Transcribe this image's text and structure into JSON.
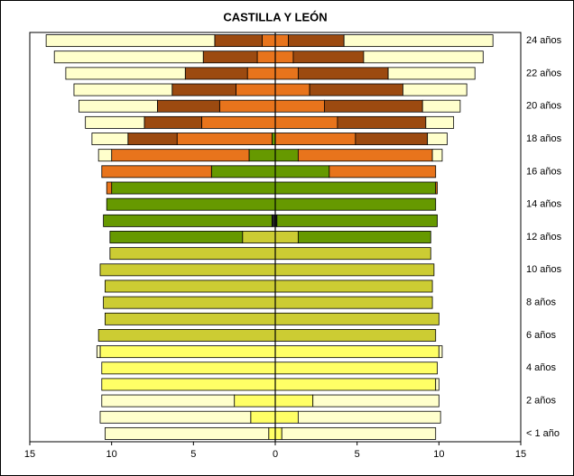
{
  "chart_data": {
    "type": "pyramid",
    "title": "CASTILLA Y LEÓN",
    "categories": [
      "< 1 año",
      null,
      "2 años",
      null,
      "4 años",
      null,
      "6 años",
      null,
      "8 años",
      null,
      "10 años",
      null,
      "12 años",
      null,
      "14 años",
      null,
      "16 años",
      null,
      "18 años",
      null,
      "20 años",
      null,
      "22 años",
      null,
      "24 años"
    ],
    "xlim": [
      -15,
      15
    ],
    "xticks": [
      {
        "value": -15,
        "label": "15"
      },
      {
        "value": -10,
        "label": "10"
      },
      {
        "value": -5,
        "label": "5"
      },
      0,
      5,
      10,
      15
    ],
    "series": [
      {
        "color": "#222222",
        "left_values": [
          0,
          0,
          0,
          0,
          0,
          0,
          0,
          0,
          0,
          0,
          0,
          0,
          0,
          0.2,
          0,
          0,
          0,
          0,
          0,
          0,
          0,
          0,
          0,
          0,
          0
        ],
        "right_values": [
          0,
          0,
          0,
          0,
          0,
          0,
          0,
          0,
          0,
          0,
          0,
          0,
          0,
          0.1,
          0,
          0,
          0,
          0,
          0,
          0,
          0,
          0,
          0,
          0,
          0
        ]
      },
      {
        "color": "#ffff66",
        "left_values": [
          0.4,
          1.5,
          2.5,
          10.6,
          10.6,
          10.7,
          0,
          0,
          0,
          0,
          0,
          0,
          0,
          0,
          0,
          0,
          0,
          0,
          0,
          0,
          0,
          0,
          0,
          0,
          0
        ],
        "right_values": [
          0.4,
          1.4,
          2.3,
          9.8,
          9.9,
          10.0,
          0,
          0,
          0,
          0,
          0,
          0,
          0,
          0,
          0,
          0,
          0,
          0,
          0,
          0,
          0,
          0,
          0,
          0,
          0
        ]
      },
      {
        "color": "#cccc33",
        "left_values": [
          0,
          0,
          0,
          0,
          0,
          0,
          10.8,
          10.4,
          10.5,
          10.4,
          10.7,
          10.1,
          2.0,
          0,
          0,
          0,
          0,
          0,
          0,
          0,
          0,
          0,
          0,
          0,
          0
        ],
        "right_values": [
          0,
          0,
          0,
          0,
          0,
          0,
          9.8,
          10.0,
          9.6,
          9.6,
          9.7,
          9.5,
          1.4,
          0,
          0,
          0,
          0,
          0,
          0,
          0,
          0,
          0,
          0,
          0,
          0
        ]
      },
      {
        "color": "#669900",
        "left_values": [
          0,
          0,
          0,
          0,
          0,
          0,
          0,
          0,
          0,
          0,
          0,
          0,
          8.1,
          10.3,
          10.3,
          10.0,
          3.9,
          1.6,
          0.2,
          0,
          0,
          0,
          0,
          0,
          0
        ],
        "right_values": [
          0,
          0,
          0,
          0,
          0,
          0,
          0,
          0,
          0,
          0,
          0,
          0,
          8.1,
          9.8,
          9.8,
          9.8,
          3.3,
          1.4,
          0,
          0,
          0,
          0,
          0,
          0,
          0
        ]
      },
      {
        "color": "#e8741c",
        "left_values": [
          0,
          0,
          0,
          0,
          0,
          0,
          0,
          0,
          0,
          0,
          0,
          0,
          0,
          0,
          0,
          0.3,
          6.7,
          8.4,
          5.8,
          4.5,
          3.4,
          2.4,
          1.7,
          1.1,
          0.8
        ],
        "right_values": [
          0,
          0,
          0,
          0,
          0,
          0,
          0,
          0,
          0,
          0,
          0,
          0,
          0,
          0,
          0,
          0.1,
          6.5,
          8.2,
          4.9,
          3.8,
          3.0,
          2.1,
          1.4,
          1.1,
          0.8
        ]
      },
      {
        "color": "#9c4a10",
        "left_values": [
          0,
          0,
          0,
          0,
          0,
          0,
          0,
          0,
          0,
          0,
          0,
          0,
          0,
          0,
          0,
          0,
          0,
          0,
          3.0,
          3.5,
          3.8,
          3.9,
          3.8,
          3.3,
          2.9
        ],
        "right_values": [
          0,
          0,
          0,
          0,
          0,
          0,
          0,
          0,
          0,
          0,
          0,
          0,
          0,
          0,
          0,
          0,
          0,
          0,
          4.4,
          5.4,
          6.0,
          5.7,
          5.5,
          4.3,
          3.4
        ]
      },
      {
        "color": "#ffffcc",
        "left_values": [
          10.0,
          9.2,
          8.1,
          0,
          0,
          0.2,
          0,
          0,
          0,
          0,
          0,
          0,
          0,
          0,
          0,
          0,
          0,
          0.8,
          2.2,
          3.6,
          4.8,
          6.0,
          7.3,
          9.1,
          10.3
        ],
        "right_values": [
          9.4,
          8.7,
          7.7,
          0.2,
          0,
          0.2,
          0,
          0,
          0,
          0,
          0,
          0,
          0,
          0,
          0,
          0,
          0,
          0.6,
          1.2,
          1.7,
          2.3,
          3.9,
          5.3,
          7.3,
          9.1
        ]
      }
    ]
  }
}
